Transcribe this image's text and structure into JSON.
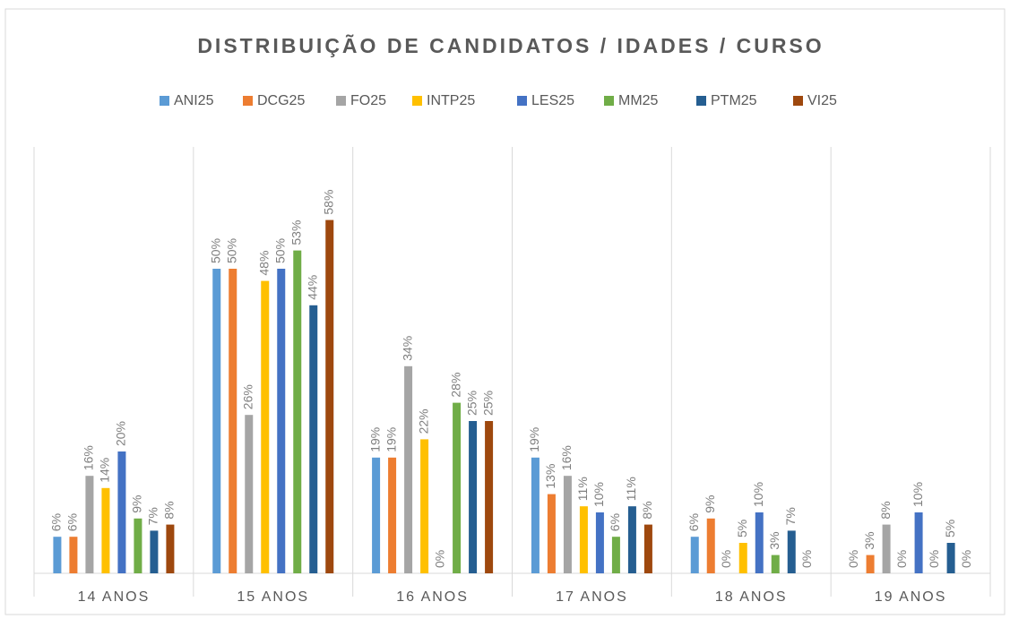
{
  "chart_data": {
    "type": "bar",
    "title": "DISTRIBUIÇÃO DE CANDIDATOS / IDADES / CURSO",
    "categories": [
      "14 ANOS",
      "15 ANOS",
      "16 ANOS",
      "17 ANOS",
      "18 ANOS",
      "19 ANOS"
    ],
    "ylim": [
      0,
      70
    ],
    "series": [
      {
        "name": "ANI25",
        "color": "#5b9bd5",
        "values": [
          6,
          50,
          19,
          19,
          6,
          0
        ],
        "value_labels": [
          "6%",
          "50%",
          "19%",
          "19%",
          "6%",
          "0%"
        ]
      },
      {
        "name": "DCG25",
        "color": "#ed7d31",
        "values": [
          6,
          50,
          19,
          13,
          9,
          3
        ],
        "value_labels": [
          "6%",
          "50%",
          "19%",
          "13%",
          "9%",
          "3%"
        ]
      },
      {
        "name": "FO25",
        "color": "#a5a5a5",
        "values": [
          16,
          26,
          34,
          16,
          0,
          8
        ],
        "value_labels": [
          "16%",
          "26%",
          "34%",
          "16%",
          "0%",
          "8%"
        ]
      },
      {
        "name": "INTP25",
        "color": "#ffc000",
        "values": [
          14,
          48,
          22,
          11,
          5,
          0
        ],
        "value_labels": [
          "14%",
          "48%",
          "22%",
          "11%",
          "5%",
          "0%"
        ]
      },
      {
        "name": "LES25",
        "color": "#4472c4",
        "values": [
          20,
          50,
          0,
          10,
          10,
          10
        ],
        "value_labels": [
          "20%",
          "50%",
          "0%",
          "10%",
          "10%",
          "10%"
        ]
      },
      {
        "name": "MM25",
        "color": "#70ad47",
        "values": [
          9,
          53,
          28,
          6,
          3,
          0
        ],
        "value_labels": [
          "9%",
          "53%",
          "28%",
          "6%",
          "3%",
          "0%"
        ]
      },
      {
        "name": "PTM25",
        "color": "#255e91",
        "values": [
          7,
          44,
          25,
          11,
          7,
          5
        ],
        "value_labels": [
          "7%",
          "44%",
          "25%",
          "11%",
          "7%",
          "5%"
        ]
      },
      {
        "name": "VI25",
        "color": "#9e480e",
        "values": [
          8,
          58,
          25,
          8,
          0,
          0
        ],
        "value_labels": [
          "8%",
          "58%",
          "25%",
          "8%",
          "0%",
          "0%"
        ]
      }
    ]
  }
}
